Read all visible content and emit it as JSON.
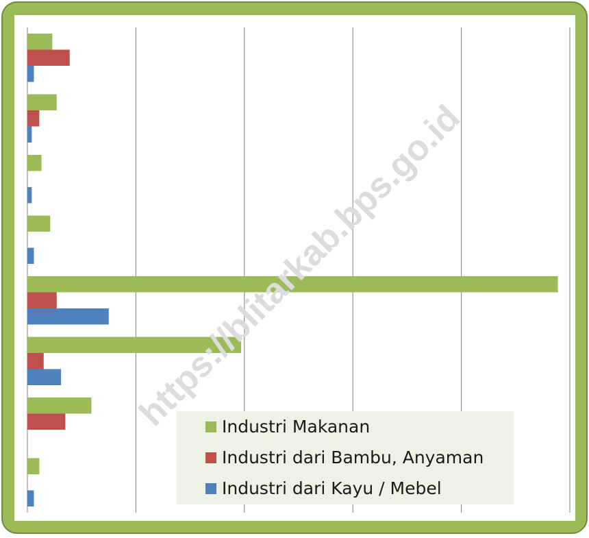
{
  "chart_data": {
    "type": "hbar",
    "categories": [
      null,
      null,
      null,
      null,
      null,
      null,
      null,
      null
    ],
    "series": [
      {
        "name": "Industri Makanan",
        "color": "#9bbb59",
        "values": [
          2.3,
          2.7,
          1.3,
          2.1,
          48.9,
          19.7,
          5.9,
          1.1
        ]
      },
      {
        "name": "Industri dari Bambu, Anyaman",
        "color": "#c0504d",
        "values": [
          3.9,
          1.1,
          0,
          0,
          2.7,
          1.5,
          3.5,
          0
        ]
      },
      {
        "name": "Industri dari Kayu / Mebel",
        "color": "#4f81bd",
        "values": [
          0.6,
          0.4,
          0.4,
          0.6,
          7.5,
          3.1,
          0,
          0.6
        ]
      }
    ],
    "xlim": [
      0,
      50
    ],
    "xticks": [
      0,
      10,
      20,
      30,
      40,
      50
    ],
    "grid": true,
    "legend": "lower right",
    "watermark": "https://blitarkab.bps.go.id"
  }
}
